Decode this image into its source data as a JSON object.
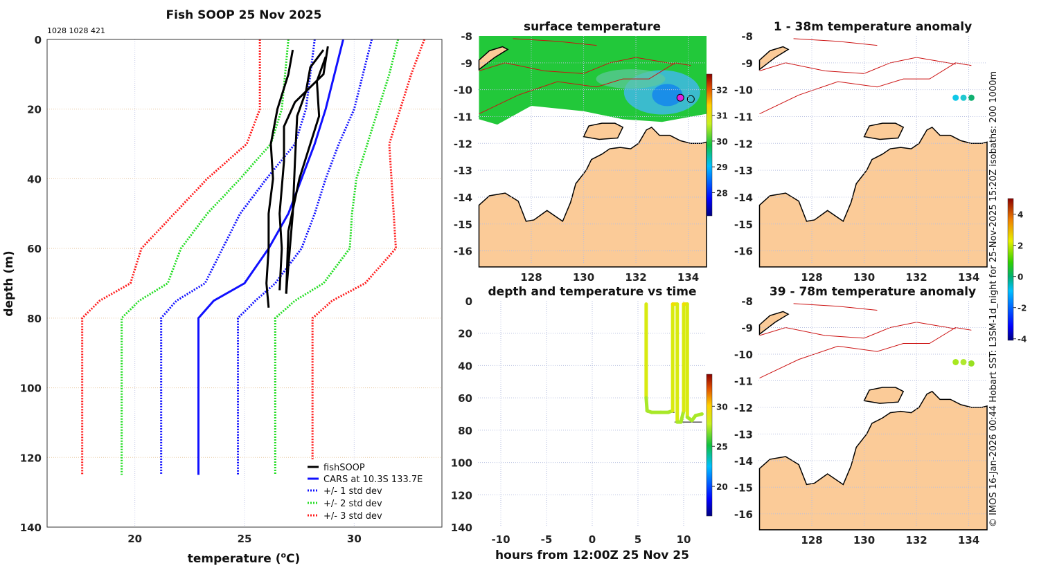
{
  "colors": {
    "red": "#ff1a1a",
    "green": "#22dd22",
    "blue": "#1010ff",
    "black": "#000000",
    "land": "#fbcb98",
    "isobath": "#cc1111"
  },
  "chart_data": [
    {
      "type": "line",
      "title": "Fish SOOP 25 Nov 2025",
      "subtitle": "1028 1028 421",
      "xlabel": "temperature (",
      "xlabel_sup": "o",
      "xlabel_end": "C)",
      "ylabel": "depth (m)",
      "xlim": [
        16,
        34
      ],
      "ylim": [
        0,
        140
      ],
      "yreversed": true,
      "grid": true,
      "xticks": [
        "20",
        "25",
        "30"
      ],
      "xtick_values": [
        20,
        25,
        30
      ],
      "yticks": [
        "0",
        "20",
        "40",
        "60",
        "80",
        "100",
        "120",
        "140"
      ],
      "ytick_values": [
        0,
        20,
        40,
        60,
        80,
        100,
        120,
        140
      ],
      "legend_position": "bottom-right",
      "legend": [
        "fishSOOP",
        "CARS at 10.3S 133.7E",
        "+/- 1 std dev",
        "+/- 2 std dev",
        "+/- 3 std dev"
      ],
      "series": [
        {
          "name": "CARS mean",
          "style": "solid",
          "color": "#1010ff",
          "points": [
            [
              29.5,
              0
            ],
            [
              29.1,
              10
            ],
            [
              28.7,
              20
            ],
            [
              28.2,
              30
            ],
            [
              27.6,
              40
            ],
            [
              27.0,
              50
            ],
            [
              26.1,
              60
            ],
            [
              25.0,
              70
            ],
            [
              23.6,
              75
            ],
            [
              22.9,
              80
            ],
            [
              22.9,
              125
            ]
          ]
        },
        {
          "name": "-1 std",
          "style": "dotted",
          "color": "#1010ff",
          "points": [
            [
              28.2,
              0
            ],
            [
              27.8,
              20
            ],
            [
              27.3,
              30
            ],
            [
              26.0,
              40
            ],
            [
              24.8,
              50
            ],
            [
              24.0,
              60
            ],
            [
              23.2,
              70
            ],
            [
              21.9,
              75
            ],
            [
              21.2,
              80
            ],
            [
              21.2,
              125
            ]
          ]
        },
        {
          "name": "+1 std",
          "style": "dotted",
          "color": "#1010ff",
          "points": [
            [
              30.8,
              0
            ],
            [
              30.4,
              10
            ],
            [
              30.0,
              20
            ],
            [
              29.3,
              30
            ],
            [
              28.7,
              40
            ],
            [
              28.2,
              50
            ],
            [
              27.6,
              60
            ],
            [
              26.4,
              70
            ],
            [
              25.5,
              75
            ],
            [
              24.7,
              80
            ],
            [
              24.7,
              125
            ]
          ]
        },
        {
          "name": "-2 std",
          "style": "dotted",
          "color": "#22dd22",
          "points": [
            [
              27.0,
              0
            ],
            [
              26.7,
              20
            ],
            [
              26.2,
              30
            ],
            [
              24.8,
              40
            ],
            [
              23.3,
              50
            ],
            [
              22.1,
              60
            ],
            [
              21.5,
              70
            ],
            [
              20.2,
              75
            ],
            [
              19.4,
              80
            ],
            [
              19.4,
              125
            ]
          ]
        },
        {
          "name": "+2 std",
          "style": "dotted",
          "color": "#22dd22",
          "points": [
            [
              32.0,
              0
            ],
            [
              31.6,
              10
            ],
            [
              31.1,
              20
            ],
            [
              30.6,
              30
            ],
            [
              30.1,
              40
            ],
            [
              29.9,
              50
            ],
            [
              29.8,
              60
            ],
            [
              28.6,
              70
            ],
            [
              27.3,
              75
            ],
            [
              26.4,
              80
            ],
            [
              26.4,
              125
            ]
          ]
        },
        {
          "name": "-3 std",
          "style": "dotted",
          "color": "#ff1a1a",
          "points": [
            [
              25.7,
              0
            ],
            [
              25.7,
              20
            ],
            [
              25.1,
              30
            ],
            [
              23.3,
              40
            ],
            [
              21.8,
              50
            ],
            [
              20.3,
              60
            ],
            [
              19.8,
              70
            ],
            [
              18.4,
              75
            ],
            [
              17.6,
              80
            ],
            [
              17.6,
              125
            ]
          ]
        },
        {
          "name": "+3 std",
          "style": "dotted",
          "color": "#ff1a1a",
          "points": [
            [
              33.2,
              0
            ],
            [
              32.6,
              10
            ],
            [
              32.1,
              20
            ],
            [
              31.6,
              30
            ],
            [
              31.7,
              40
            ],
            [
              31.8,
              50
            ],
            [
              31.9,
              60
            ],
            [
              30.5,
              70
            ],
            [
              29.0,
              75
            ],
            [
              28.1,
              80
            ],
            [
              28.1,
              125
            ]
          ]
        },
        {
          "name": "fishSOOP 1",
          "style": "solid",
          "color": "#000000",
          "points": [
            [
              27.2,
              3
            ],
            [
              27.0,
              10
            ],
            [
              26.5,
              20
            ],
            [
              26.2,
              30
            ],
            [
              26.3,
              40
            ],
            [
              26.1,
              50
            ],
            [
              26.1,
              60
            ],
            [
              26.0,
              70
            ],
            [
              26.1,
              77
            ]
          ]
        },
        {
          "name": "fishSOOP 2",
          "style": "solid",
          "color": "#000000",
          "points": [
            [
              28.8,
              2
            ],
            [
              28.6,
              10
            ],
            [
              27.3,
              18
            ],
            [
              26.8,
              25
            ],
            [
              26.8,
              35
            ],
            [
              26.6,
              50
            ],
            [
              26.7,
              60
            ],
            [
              26.6,
              72
            ]
          ]
        },
        {
          "name": "fishSOOP 3",
          "style": "solid",
          "color": "#000000",
          "points": [
            [
              28.6,
              3
            ],
            [
              28.0,
              8
            ],
            [
              27.8,
              15
            ],
            [
              27.4,
              22
            ],
            [
              27.3,
              35
            ],
            [
              27.2,
              50
            ],
            [
              27.0,
              65
            ],
            [
              26.9,
              73
            ]
          ]
        },
        {
          "name": "fishSOOP 4",
          "style": "solid",
          "color": "#000000",
          "points": [
            [
              28.7,
              5
            ],
            [
              28.3,
              12
            ],
            [
              28.4,
              22
            ],
            [
              28.0,
              30
            ],
            [
              27.5,
              40
            ],
            [
              27.0,
              55
            ],
            [
              26.9,
              73
            ]
          ]
        }
      ]
    },
    {
      "type": "heatmap",
      "title": "surface temperature",
      "xticks": [
        "128",
        "130",
        "132",
        "134"
      ],
      "xtick_values": [
        128,
        130,
        132,
        134
      ],
      "yticks": [
        "-8",
        "-9",
        "-10",
        "-11",
        "-12",
        "-13",
        "-14",
        "-15",
        "-16"
      ],
      "ytick_values": [
        -8,
        -9,
        -10,
        -11,
        -12,
        -13,
        -14,
        -15,
        -16
      ],
      "colorbar": {
        "ticks": [
          "32",
          "31",
          "30",
          "29",
          "28"
        ],
        "values": [
          32,
          31,
          30,
          29,
          28
        ],
        "range": [
          27.1,
          32.6
        ]
      },
      "fish_positions": [
        [
          133.7,
          -10.3
        ],
        [
          134.1,
          -10.35
        ]
      ]
    },
    {
      "type": "scatter",
      "title": "depth and temperature vs time",
      "xlabel": "hours from 12:00Z 25 Nov 25",
      "xlim": [
        -12.5,
        12.5
      ],
      "ylim": [
        0,
        140
      ],
      "xticks": [
        "-10",
        "-5",
        "0",
        "5",
        "10"
      ],
      "xtick_values": [
        -10,
        -5,
        0,
        5,
        10
      ],
      "yticks": [
        "0",
        "20",
        "40",
        "60",
        "80",
        "100",
        "120",
        "140"
      ],
      "ytick_values": [
        0,
        20,
        40,
        60,
        80,
        100,
        120,
        140
      ],
      "colorbar": {
        "ticks": [
          "30",
          "25",
          "20"
        ],
        "values": [
          30,
          25,
          20
        ],
        "range": [
          16.3,
          34
        ]
      },
      "track": [
        [
          5.9,
          2
        ],
        [
          5.9,
          60
        ],
        [
          6.0,
          68
        ],
        [
          6.5,
          69
        ],
        [
          7.5,
          69
        ],
        [
          8.3,
          69
        ],
        [
          8.8,
          68
        ],
        [
          8.8,
          2
        ],
        [
          9.3,
          2
        ],
        [
          9.3,
          75
        ],
        [
          9.7,
          75
        ],
        [
          10.0,
          68
        ],
        [
          10.0,
          2
        ],
        [
          10.4,
          2
        ],
        [
          10.4,
          72
        ],
        [
          10.9,
          74
        ],
        [
          11.3,
          71
        ],
        [
          12.0,
          70
        ]
      ]
    },
    {
      "type": "heatmap",
      "title": "1 - 38m temperature anomaly",
      "xticks": [
        "128",
        "130",
        "132",
        "134"
      ],
      "xtick_values": [
        128,
        130,
        132,
        134
      ],
      "yticks": [
        "-8",
        "-9",
        "-10",
        "-11",
        "-12",
        "-13",
        "-14",
        "-15",
        "-16"
      ],
      "ytick_values": [
        -8,
        -9,
        -10,
        -11,
        -12,
        -13,
        -14,
        -15,
        -16
      ],
      "anomaly_points": [
        [
          133.5,
          -10.3,
          -1.5
        ],
        [
          133.8,
          -10.3,
          -1.2
        ],
        [
          134.1,
          -10.3,
          -0.5
        ]
      ]
    },
    {
      "type": "heatmap",
      "title": "39 - 78m temperature anomaly",
      "xticks": [
        "128",
        "130",
        "132",
        "134"
      ],
      "xtick_values": [
        128,
        130,
        132,
        134
      ],
      "yticks": [
        "-8",
        "-9",
        "-10",
        "-11",
        "-12",
        "-13",
        "-14",
        "-15",
        "-16"
      ],
      "ytick_values": [
        -8,
        -9,
        -10,
        -11,
        -12,
        -13,
        -14,
        -15,
        -16
      ],
      "colorbar": {
        "ticks": [
          "4",
          "2",
          "0",
          "-2",
          "-4"
        ],
        "values": [
          4,
          2,
          0,
          -2,
          -4
        ],
        "range": [
          -4.1,
          5
        ]
      },
      "anomaly_points": [
        [
          133.5,
          -10.3,
          1.5
        ],
        [
          133.8,
          -10.3,
          1.3
        ],
        [
          134.1,
          -10.35,
          1.6
        ]
      ]
    }
  ],
  "credit": "© IMOS 16-Jan-2026 00:44 Hobart SST: L3SM-1d_night for 25-Nov-2025 15:20Z isobaths: 200  1000m"
}
